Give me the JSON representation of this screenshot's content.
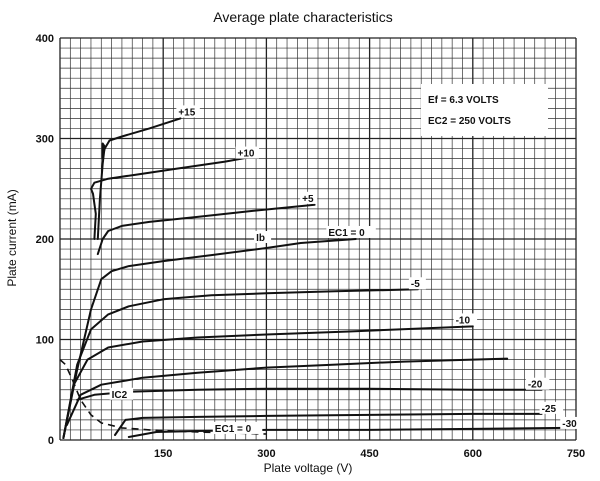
{
  "chart_data": {
    "type": "line",
    "title": "Average plate characteristics",
    "xlabel": "Plate voltage (V)",
    "ylabel": "Plate current (mA)",
    "xlim": [
      0,
      750
    ],
    "ylim": [
      0,
      400
    ],
    "x_ticks": [
      150,
      300,
      450,
      600,
      750
    ],
    "y_ticks": [
      0,
      100,
      200,
      300,
      400
    ],
    "grid": true,
    "conditions": [
      "Ef = 6.3 VOLTS",
      "EC2 = 250 VOLTS"
    ],
    "series": [
      {
        "name": "+15",
        "style": "solid",
        "label_pos": [
          172,
          323
        ],
        "points": [
          [
            55,
            200
          ],
          [
            58,
            240
          ],
          [
            62,
            275
          ],
          [
            65,
            292
          ],
          [
            62,
            295
          ],
          [
            62,
            280
          ],
          [
            65,
            290
          ],
          [
            72,
            298
          ],
          [
            90,
            302
          ],
          [
            130,
            310
          ],
          [
            175,
            320
          ]
        ]
      },
      {
        "name": "+10",
        "style": "solid",
        "label_pos": [
          258,
          282
        ],
        "points": [
          [
            50,
            200
          ],
          [
            52,
            225
          ],
          [
            48,
            245
          ],
          [
            45,
            250
          ],
          [
            50,
            256
          ],
          [
            70,
            260
          ],
          [
            110,
            264
          ],
          [
            170,
            270
          ],
          [
            240,
            277
          ],
          [
            280,
            282
          ]
        ]
      },
      {
        "name": "+5",
        "style": "solid",
        "label_pos": [
          352,
          237
        ],
        "points": [
          [
            55,
            185
          ],
          [
            62,
            200
          ],
          [
            70,
            208
          ],
          [
            90,
            213
          ],
          [
            130,
            217
          ],
          [
            200,
            222
          ],
          [
            280,
            228
          ],
          [
            370,
            234
          ]
        ]
      },
      {
        "name": "EC1 = 0",
        "style": "solid",
        "label_pos": [
          390,
          203
        ],
        "points": [
          [
            5,
            2
          ],
          [
            25,
            70
          ],
          [
            45,
            130
          ],
          [
            60,
            160
          ],
          [
            75,
            168
          ],
          [
            100,
            173
          ],
          [
            150,
            178
          ],
          [
            220,
            184
          ],
          [
            300,
            191
          ],
          [
            350,
            196
          ],
          [
            430,
            200
          ]
        ]
      },
      {
        "name": "-5",
        "style": "solid",
        "label_pos": [
          510,
          152
        ],
        "points": [
          [
            5,
            2
          ],
          [
            25,
            75
          ],
          [
            45,
            110
          ],
          [
            70,
            125
          ],
          [
            100,
            133
          ],
          [
            150,
            140
          ],
          [
            220,
            144
          ],
          [
            300,
            146
          ],
          [
            400,
            148
          ],
          [
            520,
            150
          ]
        ]
      },
      {
        "name": "-10",
        "style": "solid",
        "label_pos": [
          575,
          116
        ],
        "points": [
          [
            5,
            2
          ],
          [
            20,
            55
          ],
          [
            40,
            80
          ],
          [
            70,
            92
          ],
          [
            120,
            98
          ],
          [
            200,
            102
          ],
          [
            300,
            105
          ],
          [
            420,
            108
          ],
          [
            600,
            113
          ]
        ]
      },
      {
        "name": "",
        "style": "solid",
        "label_pos": null,
        "points": [
          [
            10,
            15
          ],
          [
            30,
            45
          ],
          [
            60,
            55
          ],
          [
            120,
            62
          ],
          [
            200,
            67
          ],
          [
            300,
            72
          ],
          [
            400,
            75
          ],
          [
            500,
            78
          ],
          [
            650,
            81
          ]
        ]
      },
      {
        "name": "-20",
        "style": "solid",
        "label_pos": [
          680,
          52
        ],
        "points": [
          [
            25,
            40
          ],
          [
            50,
            45
          ],
          [
            100,
            48
          ],
          [
            200,
            50
          ],
          [
            300,
            51
          ],
          [
            450,
            51
          ],
          [
            600,
            50
          ],
          [
            700,
            50
          ]
        ]
      },
      {
        "name": "-25",
        "style": "solid",
        "label_pos": [
          700,
          28
        ],
        "points": [
          [
            80,
            5
          ],
          [
            95,
            20
          ],
          [
            120,
            22
          ],
          [
            200,
            23
          ],
          [
            300,
            24
          ],
          [
            450,
            25
          ],
          [
            600,
            26
          ],
          [
            700,
            26
          ]
        ]
      },
      {
        "name": "-30",
        "style": "solid",
        "label_pos": [
          730,
          13
        ],
        "points": [
          [
            100,
            3
          ],
          [
            140,
            8
          ],
          [
            200,
            9
          ],
          [
            300,
            10
          ],
          [
            450,
            10
          ],
          [
            600,
            11
          ],
          [
            735,
            12
          ]
        ]
      },
      {
        "name": "IC2 (EC1 = 0)",
        "style": "dashed",
        "label_pos": null,
        "points": [
          [
            0,
            80
          ],
          [
            8,
            75
          ],
          [
            18,
            60
          ],
          [
            30,
            40
          ],
          [
            45,
            25
          ],
          [
            60,
            17
          ],
          [
            90,
            12
          ],
          [
            130,
            10
          ],
          [
            200,
            8
          ],
          [
            300,
            6
          ]
        ]
      }
    ],
    "annotations": [
      {
        "text": "Ib",
        "x": 285,
        "y": 198
      },
      {
        "text": "IC2",
        "x": 75,
        "y": 42
      },
      {
        "text": "EC1 = 0",
        "x": 225,
        "y": 8
      }
    ]
  }
}
